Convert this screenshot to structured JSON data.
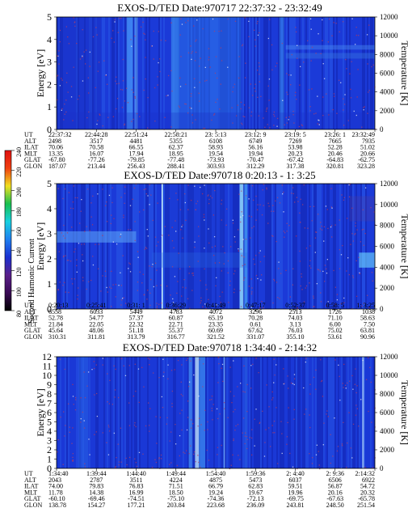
{
  "chart_data": [
    {
      "type": "heatmap",
      "title": "EXOS-D/TED   Date:970717  22:37:32 - 23:32:49",
      "ylabel": "Energy [eV]",
      "ylabel_right": "Temperature [K]",
      "ylim": [
        0,
        5
      ],
      "yticks": [
        "0",
        "1",
        "2",
        "3",
        "4",
        "5"
      ],
      "ylim_right": [
        0,
        12000
      ],
      "yticks_right": [
        "0",
        "2000",
        "4000",
        "6000",
        "8000",
        "10000",
        "12000"
      ],
      "row_labels": [
        "UT",
        "ALT",
        "ILAT",
        "MLT",
        "GLAT",
        "GLON"
      ],
      "columns": [
        [
          "22:37:32",
          "2498",
          "70.06",
          "13.35",
          "-67.80",
          "187.07"
        ],
        [
          "22:44:28",
          "3517",
          "70.58",
          "16.07",
          "-77.26",
          "213.44"
        ],
        [
          "22:51:24",
          "4481",
          "66.55",
          "17.94",
          "-79.85",
          "256.43"
        ],
        [
          "22:58:21",
          "5355",
          "62.37",
          "18.95",
          "-77.48",
          "288.41"
        ],
        [
          "23: 5:13",
          "6108",
          "58.93",
          "19.54",
          "-73.93",
          "303.93"
        ],
        [
          "23:12: 9",
          "6749",
          "56.16",
          "19.94",
          "-70.47",
          "312.29"
        ],
        [
          "23:19: 5",
          "7269",
          "53.98",
          "20.23",
          "-67.42",
          "317.38"
        ],
        [
          "23:26: 1",
          "7665",
          "52.28",
          "20.46",
          "-64.83",
          "320.81"
        ],
        [
          "23:32:49",
          "7935",
          "51.02",
          "20.66",
          "-62.75",
          "323.28"
        ]
      ]
    },
    {
      "type": "heatmap",
      "title": "EXOS-D/TED   Date:970718  0:20:13 - 1: 3:25",
      "ylabel": "Energy [eV]",
      "ylabel_right": "Temperature [K]",
      "ylim": [
        0,
        5
      ],
      "yticks": [
        "0",
        "1",
        "2",
        "3",
        "4",
        "5"
      ],
      "ylim_right": [
        0,
        12000
      ],
      "yticks_right": [
        "0",
        "2000",
        "4000",
        "6000",
        "8000",
        "10000",
        "12000"
      ],
      "row_labels": [
        "UT",
        "ALT",
        "ILAT",
        "MLT",
        "GLAT",
        "GLON"
      ],
      "columns": [
        [
          "0:20:13",
          "6558",
          "52.78",
          "21.84",
          "45.64",
          "310.31"
        ],
        [
          "0:25:41",
          "6033",
          "54.77",
          "22.05",
          "48.06",
          "311.81"
        ],
        [
          "0:31: 1",
          "5449",
          "57.37",
          "22.32",
          "51.18",
          "313.79"
        ],
        [
          "0:36:29",
          "4783",
          "60.87",
          "22.71",
          "55.37",
          "316.77"
        ],
        [
          "0:41:49",
          "4072",
          "65.19",
          "23.35",
          "60.69",
          "321.52"
        ],
        [
          "0:47:17",
          "3296",
          "70.28",
          "0.61",
          "67.62",
          "331.07"
        ],
        [
          "0:52:37",
          "2513",
          "74.03",
          "3.13",
          "76.03",
          "355.10"
        ],
        [
          "0:58: 5",
          "1726",
          "71.10",
          "6.00",
          "75.02",
          "53.61"
        ],
        [
          "1: 3:25",
          "1038",
          "58.63",
          "7.50",
          "63.81",
          "90.96"
        ]
      ]
    },
    {
      "type": "heatmap",
      "title": "EXOS-D/TED   Date:970718  1:34:40 - 2:14:32",
      "ylabel": "Energy [eV]",
      "ylabel_right": "Temperature [K]",
      "ylim": [
        0,
        12
      ],
      "yticks": [
        "0",
        "1",
        "2",
        "3",
        "4",
        "5",
        "6",
        "7",
        "8",
        "9",
        "10",
        "11",
        "12"
      ],
      "ylim_right": [
        0,
        12000
      ],
      "yticks_right": [
        "0",
        "2000",
        "4000",
        "6000",
        "8000",
        "10000",
        "12000"
      ],
      "row_labels": [
        "UT",
        "ALT",
        "ILAT",
        "MLT",
        "GLAT",
        "GLON"
      ],
      "columns": [
        [
          "1:34:40",
          "2043",
          "74.00",
          "11.78",
          "-60.10",
          "138.78"
        ],
        [
          "1:39:44",
          "2787",
          "79.83",
          "14.38",
          "-69.46",
          "154.27"
        ],
        [
          "1:44:40",
          "3511",
          "76.83",
          "16.99",
          "-74.51",
          "177.21"
        ],
        [
          "1:49:44",
          "4224",
          "71.51",
          "18.50",
          "-75.10",
          "203.84"
        ],
        [
          "1:54:40",
          "4875",
          "66.79",
          "19.24",
          "-74.36",
          "223.68"
        ],
        [
          "1:59:36",
          "5473",
          "62.83",
          "19.67",
          "-72.13",
          "236.09"
        ],
        [
          "2: 4:40",
          "6037",
          "59.51",
          "19.96",
          "-69.75",
          "243.81"
        ],
        [
          "2: 9:36",
          "6506",
          "56.87",
          "20.16",
          "-67.63",
          "248.50"
        ],
        [
          "2:14:32",
          "6922",
          "54.72",
          "20.32",
          "-65.78",
          "251.54"
        ]
      ]
    }
  ],
  "colorbar": {
    "label": "Second Harmonic Current",
    "ticks": [
      "80",
      "100",
      "120",
      "140",
      "160",
      "180",
      "200",
      "220",
      "240"
    ],
    "colors": [
      "#000000",
      "#3a0a55",
      "#5a1f8a",
      "#1a2fd0",
      "#1f7ff0",
      "#18d0e0",
      "#18c050",
      "#f0e020",
      "#f04010",
      "#e01010"
    ]
  },
  "colors": {
    "background": "#1a3ad8",
    "band_bright": "#3aa0f8",
    "band_dark": "#1020a8",
    "speckle_red": "#b0406a",
    "speckle_white": "#f0f0f8"
  }
}
